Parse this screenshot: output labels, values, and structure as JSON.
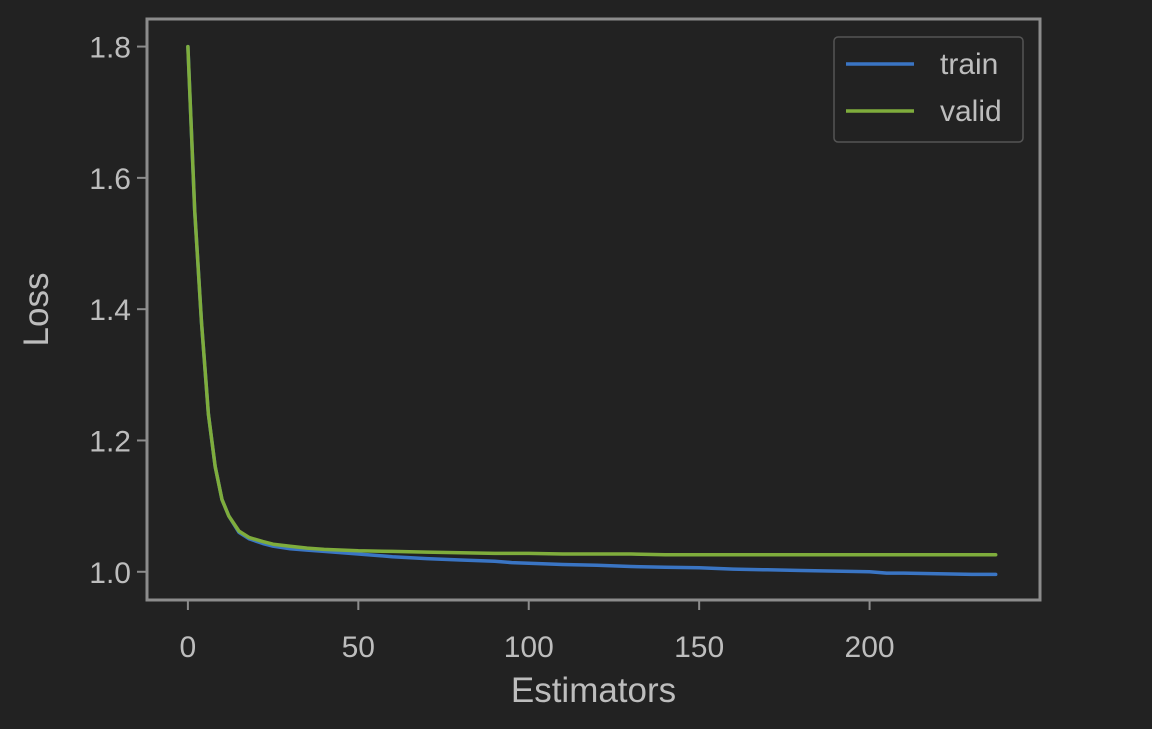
{
  "chart_data": {
    "type": "line",
    "xlabel": "Estimators",
    "ylabel": "Loss",
    "xlim": [
      -12,
      250
    ],
    "ylim": [
      0.957,
      1.842
    ],
    "xticks": [
      0,
      50,
      100,
      150,
      200
    ],
    "yticks": [
      1.0,
      1.2,
      1.4,
      1.6,
      1.8
    ],
    "grid": false,
    "legend_position": "upper right",
    "series": [
      {
        "name": "train",
        "color": "#3a75c4",
        "x": [
          0,
          2,
          4,
          6,
          8,
          10,
          12,
          15,
          18,
          22,
          25,
          30,
          35,
          40,
          50,
          60,
          70,
          80,
          90,
          95,
          100,
          110,
          120,
          130,
          140,
          150,
          160,
          170,
          180,
          190,
          200,
          205,
          210,
          220,
          230,
          237
        ],
        "values": [
          1.8,
          1.55,
          1.38,
          1.24,
          1.16,
          1.11,
          1.085,
          1.06,
          1.05,
          1.043,
          1.039,
          1.035,
          1.033,
          1.031,
          1.027,
          1.023,
          1.02,
          1.018,
          1.016,
          1.014,
          1.013,
          1.011,
          1.01,
          1.008,
          1.007,
          1.006,
          1.004,
          1.003,
          1.002,
          1.001,
          1.0,
          0.998,
          0.998,
          0.997,
          0.996,
          0.996
        ]
      },
      {
        "name": "valid",
        "color": "#7fad3c",
        "x": [
          0,
          2,
          4,
          6,
          8,
          10,
          12,
          15,
          18,
          22,
          25,
          30,
          35,
          40,
          50,
          60,
          70,
          80,
          90,
          100,
          110,
          120,
          130,
          140,
          150,
          160,
          170,
          180,
          190,
          200,
          210,
          220,
          230,
          237
        ],
        "values": [
          1.8,
          1.55,
          1.38,
          1.24,
          1.16,
          1.11,
          1.085,
          1.062,
          1.052,
          1.046,
          1.042,
          1.039,
          1.036,
          1.034,
          1.032,
          1.031,
          1.03,
          1.029,
          1.028,
          1.028,
          1.027,
          1.027,
          1.027,
          1.026,
          1.026,
          1.026,
          1.026,
          1.026,
          1.026,
          1.026,
          1.026,
          1.026,
          1.026,
          1.026
        ]
      }
    ]
  }
}
